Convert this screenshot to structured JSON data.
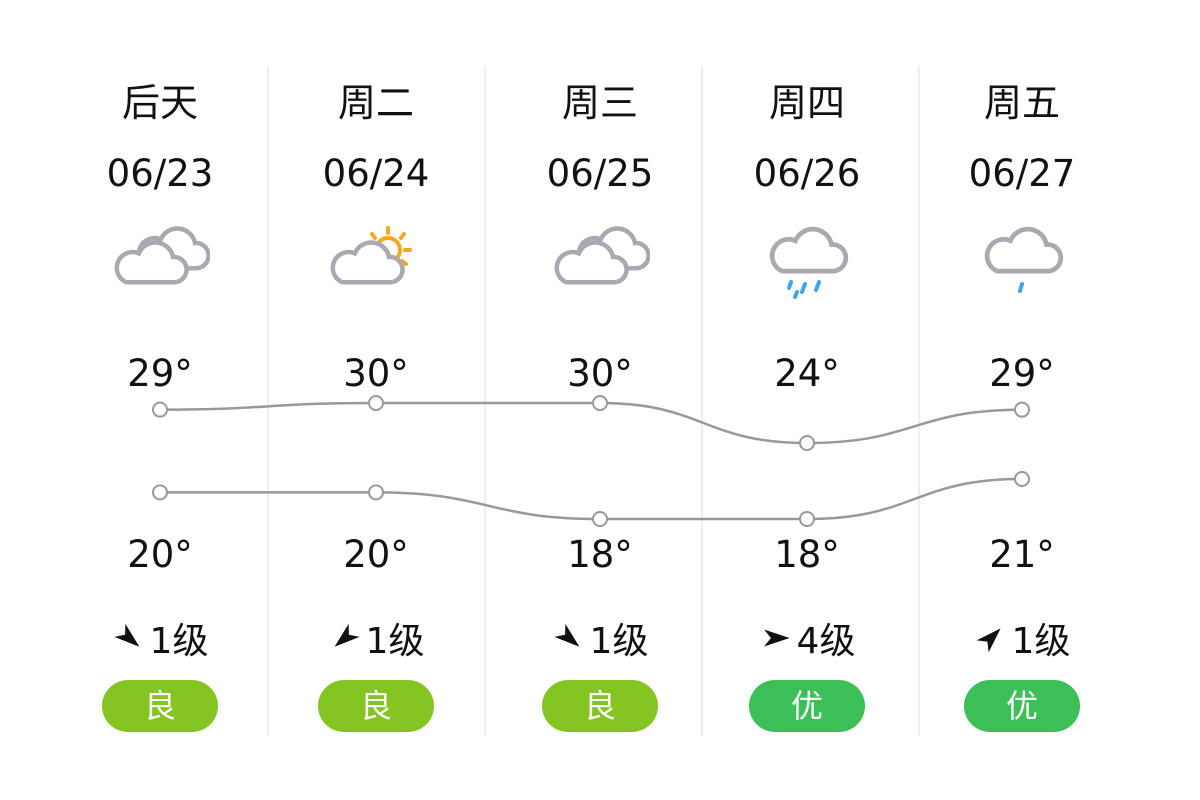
{
  "colors": {
    "line": "#999999",
    "good": "#84c523",
    "excellent": "#3dbf58",
    "sun": "#f5a623",
    "cloud": "#a9a9b1",
    "rain": "#3ea7e8"
  },
  "days": [
    {
      "day": "后天",
      "date": "06/23",
      "icon": "cloudy-icon",
      "high": "29°",
      "low": "20°",
      "high_value": 29,
      "low_value": 20,
      "wind_direction": "southeast",
      "wind": "1级",
      "aqi": "良",
      "aqi_level": "good"
    },
    {
      "day": "周二",
      "date": "06/24",
      "icon": "partly-cloudy-icon",
      "high": "30°",
      "low": "20°",
      "high_value": 30,
      "low_value": 20,
      "wind_direction": "southwest",
      "wind": "1级",
      "aqi": "良",
      "aqi_level": "good"
    },
    {
      "day": "周三",
      "date": "06/25",
      "icon": "cloudy-icon",
      "high": "30°",
      "low": "18°",
      "high_value": 30,
      "low_value": 18,
      "wind_direction": "southeast",
      "wind": "1级",
      "aqi": "良",
      "aqi_level": "good"
    },
    {
      "day": "周四",
      "date": "06/26",
      "icon": "moderate-rain-icon",
      "high": "24°",
      "low": "18°",
      "high_value": 24,
      "low_value": 18,
      "wind_direction": "east",
      "wind": "4级",
      "aqi": "优",
      "aqi_level": "excellent"
    },
    {
      "day": "周五",
      "date": "06/27",
      "icon": "light-rain-icon",
      "high": "29°",
      "low": "21°",
      "high_value": 29,
      "low_value": 21,
      "wind_direction": "northeast",
      "wind": "1级",
      "aqi": "优",
      "aqi_level": "excellent"
    }
  ]
}
